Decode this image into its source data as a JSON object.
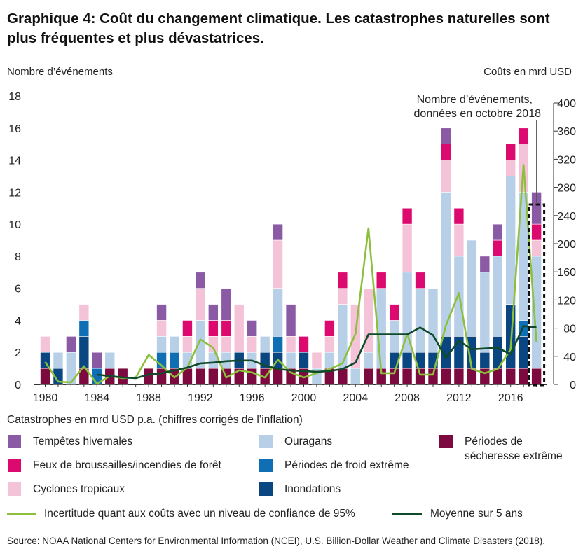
{
  "title": "Graphique 4: Coût du changement climatique. Les catastrophes naturelles sont plus fréquentes et plus dévastatrices.",
  "left_axis_label": "Nombre d’événements",
  "right_axis_label": "Coûts en mrd USD",
  "annotation": "Nombre d’événements, données en octobre 2018",
  "legend_title": "Catastrophes en mrd USD p.a. (chiffres corrigés de l’inflation)",
  "legend": [
    {
      "key": "hiver",
      "label": "Tempêtes hivernales",
      "color": "#8a5aa5"
    },
    {
      "key": "ouragans",
      "label": "Ouragans",
      "color": "#b8cfe8"
    },
    {
      "key": "secheresse",
      "label": "Périodes de sécheresse extrême",
      "color": "#7c0a3e"
    },
    {
      "key": "feux",
      "label": "Feux de broussailles/incendies de forêt",
      "color": "#dc0a6e"
    },
    {
      "key": "froid",
      "label": "Périodes de froid extrême",
      "color": "#0f6eb4"
    },
    {
      "key": "cyclones",
      "label": "Cyclones tropicaux",
      "color": "#f5c3d7"
    },
    {
      "key": "inondations",
      "label": "Inondations",
      "color": "#0a4682"
    }
  ],
  "line_legend": [
    {
      "label": "Incertitude quant aux coûts avec un niveau de confiance de 95%",
      "color": "#8cc03c"
    },
    {
      "label": "Moyenne sur 5 ans",
      "color": "#0f4a2a"
    }
  ],
  "source": "Source: NOAA National Centers for Environmental Information (NCEI), U.S. Billion-Dollar Weather and Climate Disasters (2018).",
  "chart_data": {
    "type": "bar",
    "stacked": true,
    "x": [
      1980,
      1981,
      1982,
      1983,
      1984,
      1985,
      1986,
      1987,
      1988,
      1989,
      1990,
      1991,
      1992,
      1993,
      1994,
      1995,
      1996,
      1997,
      1998,
      1999,
      2000,
      2001,
      2002,
      2003,
      2004,
      2005,
      2006,
      2007,
      2008,
      2009,
      2010,
      2011,
      2012,
      2013,
      2014,
      2015,
      2016,
      2017,
      2018
    ],
    "x_ticks": [
      "1980",
      "1984",
      "1988",
      "1992",
      "1996",
      "2000",
      "2004",
      "2008",
      "2012",
      "2016"
    ],
    "y_left": {
      "label": "Nombre d’événements",
      "ylim": [
        0,
        18
      ],
      "ticks": [
        0,
        2,
        4,
        6,
        8,
        10,
        12,
        14,
        16,
        18
      ]
    },
    "y_right": {
      "label": "Coûts en mrd USD",
      "ylim": [
        0,
        400
      ],
      "ticks": [
        0,
        40,
        80,
        120,
        160,
        200,
        240,
        280,
        320,
        360,
        400
      ]
    },
    "series": [
      {
        "name": "Périodes de sécheresse extrême",
        "key": "secheresse",
        "values": [
          1,
          0,
          0,
          1,
          0,
          1,
          1,
          0,
          1,
          1,
          1,
          1,
          1,
          1,
          1,
          1,
          1,
          1,
          1,
          1,
          1,
          0,
          1,
          1,
          0,
          1,
          1,
          1,
          1,
          1,
          1,
          1,
          1,
          1,
          1,
          1,
          1,
          1,
          1
        ]
      },
      {
        "name": "Inondations",
        "key": "inondations",
        "values": [
          1,
          1,
          0,
          2,
          0,
          0,
          0,
          0,
          0,
          0,
          0,
          0,
          0,
          0,
          0,
          1,
          0,
          1,
          1,
          0,
          1,
          0,
          0,
          0,
          0,
          0,
          0,
          1,
          1,
          1,
          1,
          2,
          2,
          2,
          1,
          2,
          4,
          2,
          0
        ]
      },
      {
        "name": "Périodes de froid extrême",
        "key": "froid",
        "values": [
          0,
          0,
          0,
          1,
          1,
          0,
          0,
          0,
          0,
          1,
          1,
          0,
          0,
          0,
          0,
          0,
          0,
          0,
          1,
          0,
          0,
          0,
          0,
          0,
          0,
          0,
          0,
          0,
          0,
          0,
          0,
          0,
          0,
          0,
          0,
          0,
          0,
          1,
          0
        ]
      },
      {
        "name": "Ouragans",
        "key": "ouragans",
        "values": [
          0,
          1,
          2,
          0,
          0,
          1,
          0,
          0,
          0,
          1,
          1,
          1,
          3,
          1,
          1,
          0,
          1,
          1,
          3,
          1,
          0,
          1,
          1,
          4,
          1,
          1,
          5,
          2,
          5,
          4,
          4,
          9,
          5,
          6,
          5,
          5,
          8,
          8,
          7
        ]
      },
      {
        "name": "Cyclones tropicaux",
        "key": "cyclones",
        "values": [
          1,
          0,
          0,
          1,
          0,
          0,
          0,
          0,
          0,
          1,
          0,
          1,
          2,
          1,
          1,
          3,
          1,
          0,
          3,
          1,
          0,
          1,
          1,
          1,
          4,
          4,
          0,
          0,
          3,
          0,
          0,
          2,
          2,
          0,
          0,
          0,
          1,
          3,
          1
        ]
      },
      {
        "name": "Feux de broussailles/incendies de forêt",
        "key": "feux",
        "values": [
          0,
          0,
          0,
          0,
          0,
          0,
          0,
          0,
          0,
          0,
          0,
          1,
          0,
          1,
          1,
          0,
          0,
          0,
          0,
          0,
          1,
          0,
          1,
          1,
          0,
          0,
          1,
          1,
          1,
          1,
          0,
          1,
          1,
          0,
          0,
          1,
          1,
          1,
          1
        ]
      },
      {
        "name": "Tempêtes hivernales",
        "key": "hiver",
        "values": [
          0,
          0,
          1,
          0,
          1,
          0,
          0,
          0,
          0,
          1,
          0,
          0,
          1,
          1,
          2,
          0,
          1,
          0,
          1,
          2,
          0,
          0,
          0,
          0,
          0,
          0,
          0,
          0,
          0,
          0,
          0,
          1,
          0,
          0,
          1,
          1,
          0,
          0,
          2
        ]
      }
    ],
    "lines": [
      {
        "name": "Incertitude quant aux coûts avec un niveau de confiance de 95%",
        "axis": "right",
        "values": [
          32,
          4,
          3,
          26,
          1,
          12,
          9,
          10,
          42,
          27,
          10,
          24,
          64,
          52,
          10,
          20,
          17,
          10,
          35,
          17,
          10,
          16,
          22,
          30,
          72,
          222,
          16,
          16,
          72,
          14,
          14,
          84,
          130,
          22,
          16,
          22,
          50,
          312,
          60
        ]
      },
      {
        "name": "Moyenne sur 5 ans",
        "axis": "right",
        "values": [
          null,
          null,
          null,
          null,
          14,
          12,
          10,
          9,
          14,
          16,
          20,
          24,
          30,
          31,
          33,
          34,
          34,
          27,
          22,
          20,
          19,
          18,
          19,
          22,
          31,
          71,
          71,
          71,
          71,
          81,
          70,
          38,
          62,
          50,
          51,
          52,
          43,
          83,
          81
        ]
      }
    ],
    "highlight": {
      "year": 2018,
      "label": "Nombre d’événements, données en octobre 2018"
    },
    "grid": false,
    "legend_position": "bottom"
  }
}
